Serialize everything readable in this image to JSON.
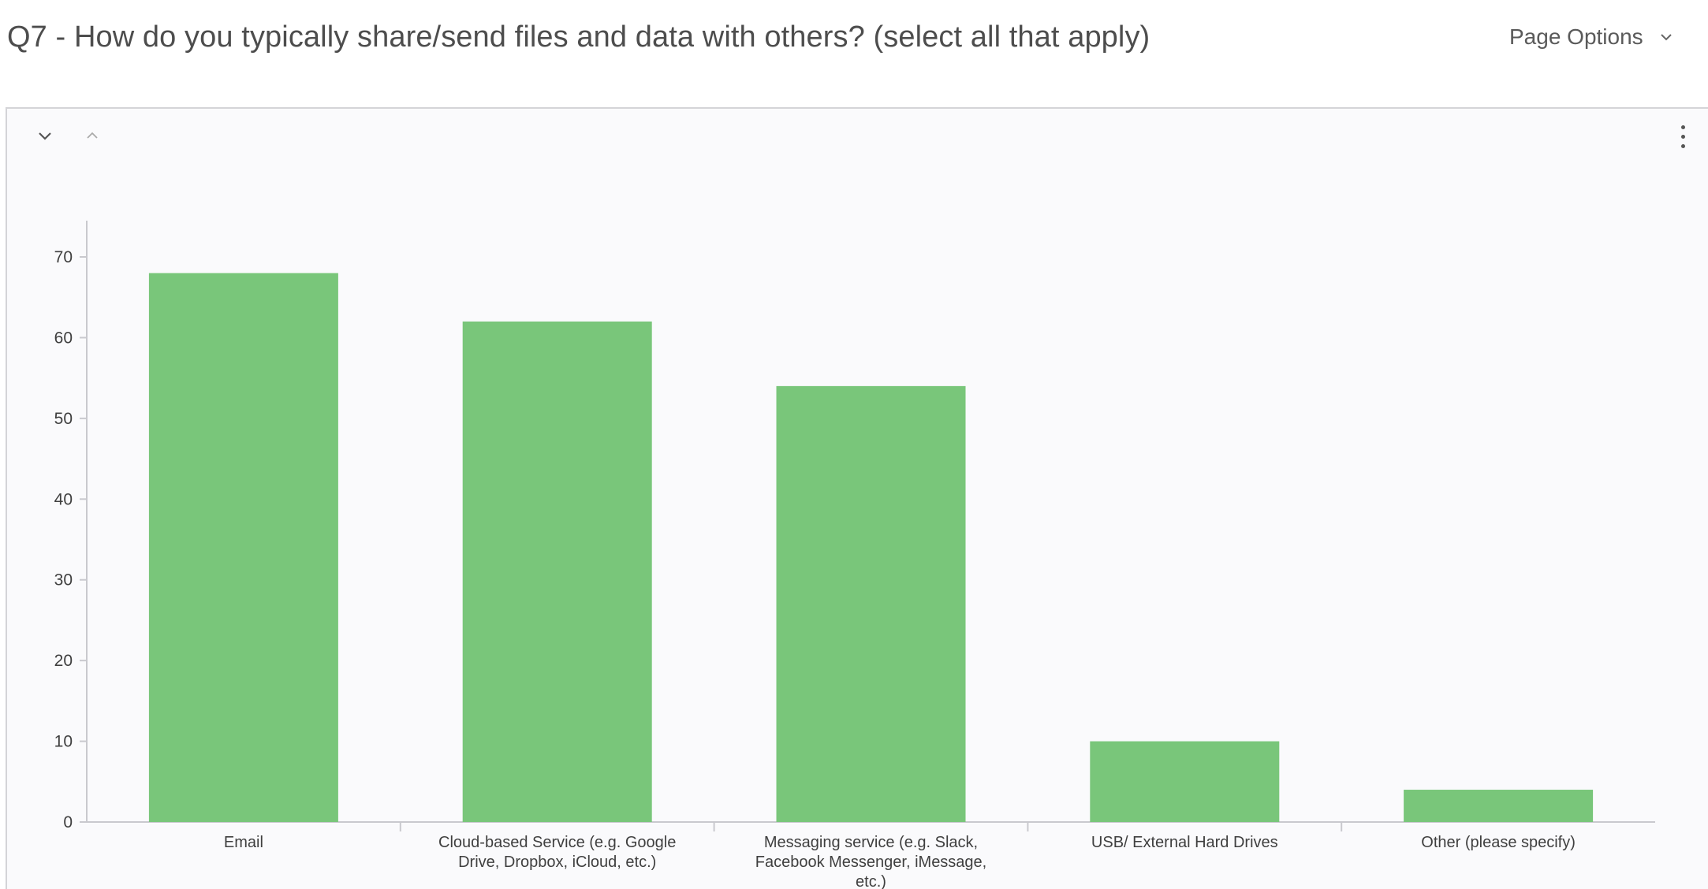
{
  "question": {
    "title": "Q7 - How do you typically share/send files and data with others? (select all that apply)"
  },
  "page_options": {
    "label": "Page Options",
    "icon": "chevron-down-icon"
  },
  "panel": {
    "collapse_icon": "chevron-down-icon",
    "expand_icon": "chevron-up-icon",
    "menu_icon": "more-vertical-icon"
  },
  "colors": {
    "bar": "#79c67a",
    "axis": "#c9c9ce",
    "text": "#3f3f3f"
  },
  "chart_data": {
    "type": "bar",
    "title": "",
    "xlabel": "",
    "ylabel": "",
    "ylim": [
      0,
      70
    ],
    "yticks": [
      0,
      10,
      20,
      30,
      40,
      50,
      60,
      70
    ],
    "categories": [
      [
        "Email"
      ],
      [
        "Cloud-based Service (e.g. Google",
        "Drive, Dropbox, iCloud, etc.)"
      ],
      [
        "Messaging service (e.g. Slack,",
        "Facebook Messenger, iMessage,",
        "etc.)"
      ],
      [
        "USB/ External Hard Drives"
      ],
      [
        "Other (please specify)"
      ]
    ],
    "values": [
      68,
      62,
      54,
      10,
      4
    ],
    "grid": false,
    "legend": "none"
  }
}
